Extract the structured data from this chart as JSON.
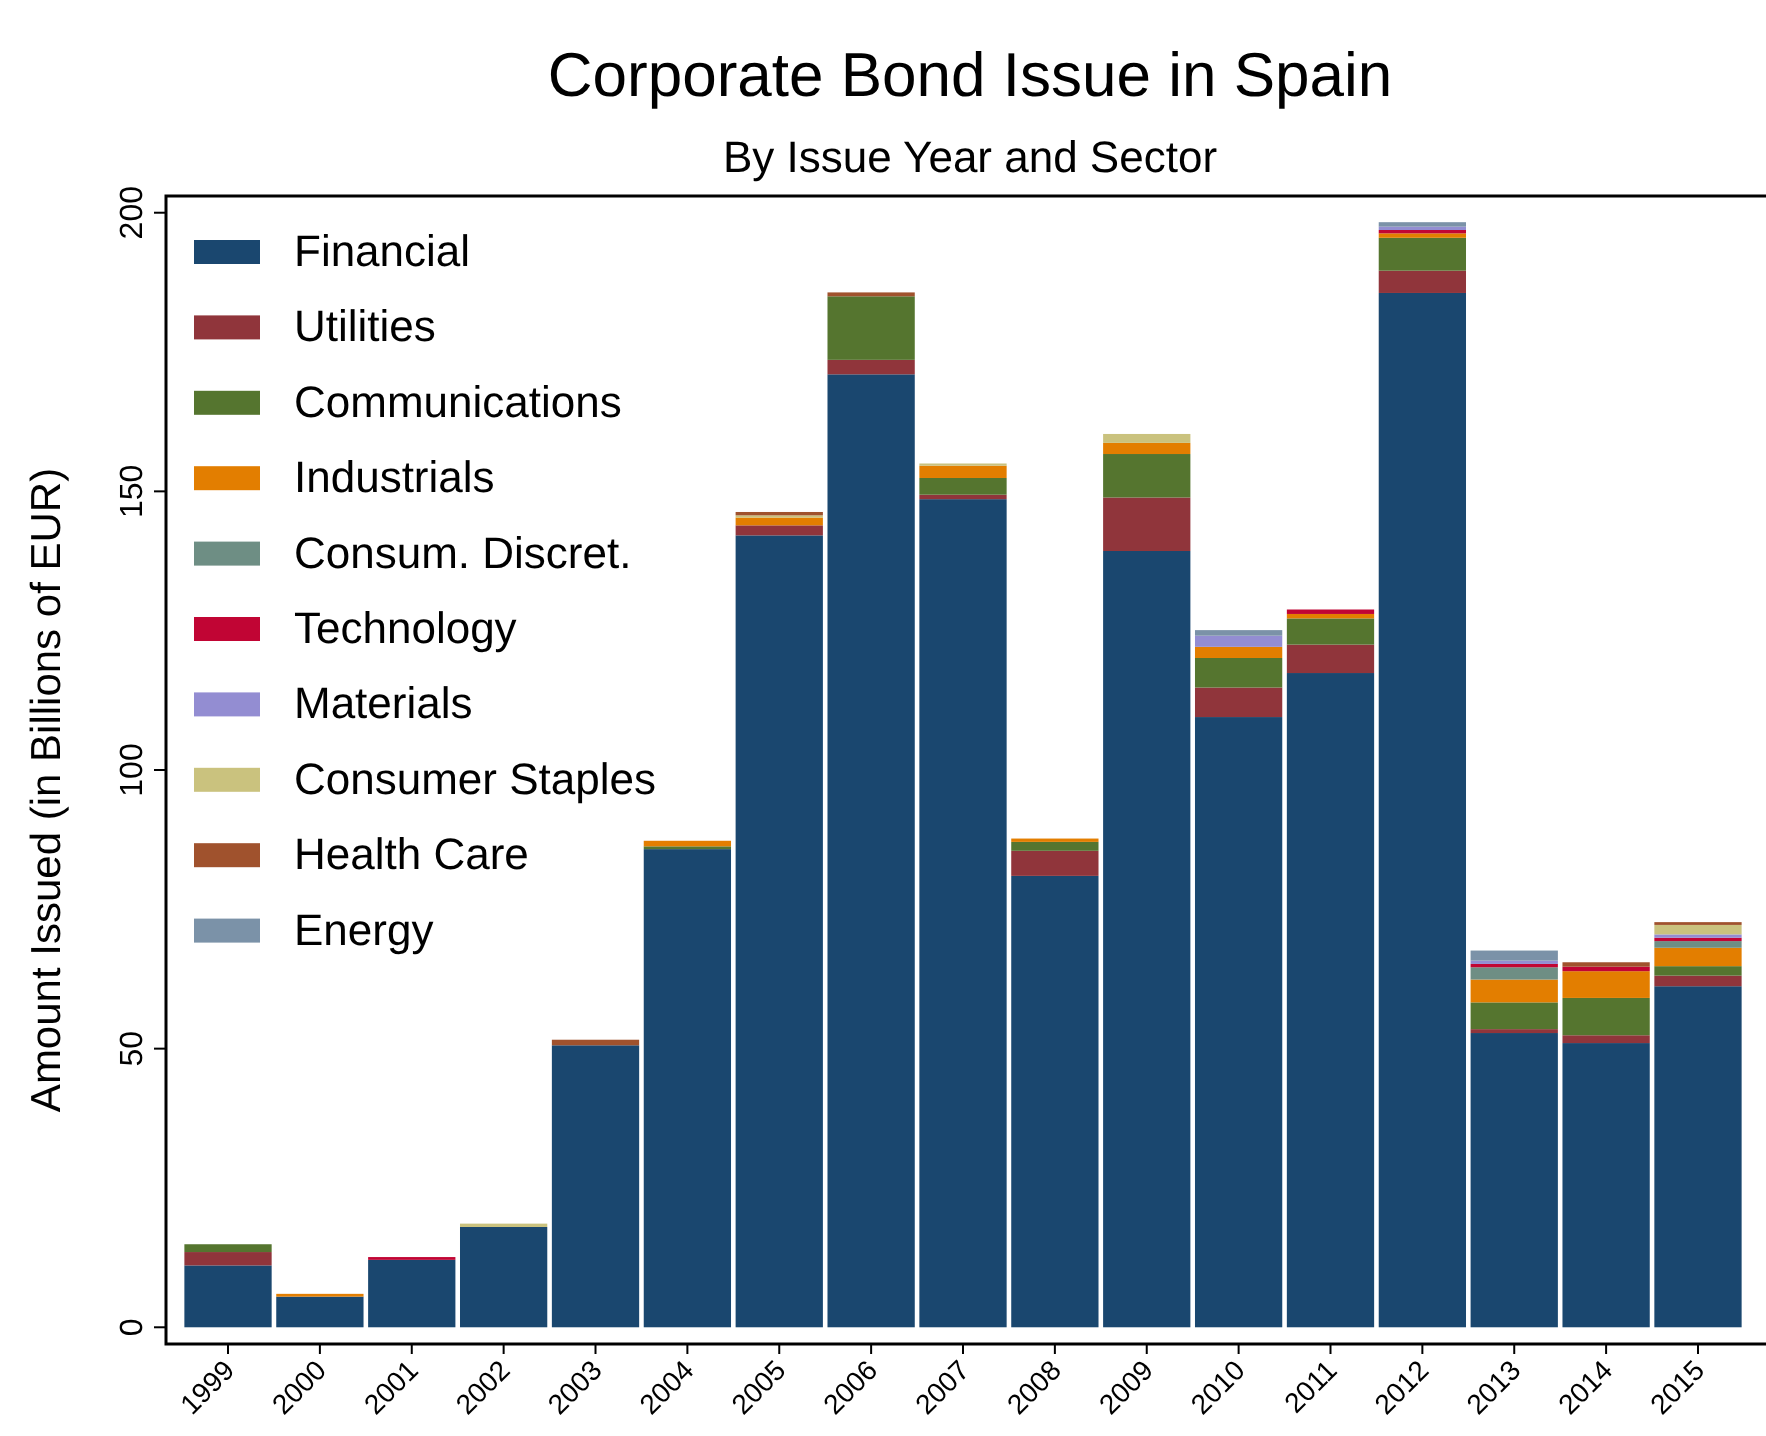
{
  "chart_data": {
    "type": "bar",
    "title": "Corporate Bond Issue in Spain",
    "subtitle": "By Issue Year and Sector",
    "ylabel": "Amount Issued (in Billions of EUR)",
    "categories": [
      "1999",
      "2000",
      "2001",
      "2002",
      "2003",
      "2004",
      "2005",
      "2006",
      "2007",
      "2008",
      "2009",
      "2010",
      "2011",
      "2012",
      "2013",
      "2014",
      "2015"
    ],
    "stacked": true,
    "ylim": [
      -3,
      203
    ],
    "yticks": [
      0,
      50,
      100,
      150,
      200
    ],
    "grid": false,
    "legend": "top left",
    "series": [
      {
        "name": "Financial",
        "color": "#1a476f",
        "values": [
          11.1,
          5.5,
          12.1,
          18.0,
          50.6,
          85.8,
          142.1,
          171.0,
          148.6,
          81.0,
          139.3,
          109.5,
          117.4,
          185.6,
          52.8,
          51.0,
          61.2
        ]
      },
      {
        "name": "Utilities",
        "color": "#90353b",
        "values": [
          2.4,
          null,
          null,
          null,
          null,
          null,
          1.8,
          2.6,
          0.8,
          4.5,
          9.6,
          5.3,
          5.1,
          4.0,
          0.7,
          1.4,
          1.9
        ]
      },
      {
        "name": "Communications",
        "color": "#55752f",
        "values": [
          1.4,
          null,
          null,
          null,
          null,
          0.5,
          null,
          11.4,
          3.0,
          1.6,
          7.8,
          5.3,
          4.7,
          5.9,
          4.8,
          6.7,
          1.7
        ]
      },
      {
        "name": "Industrials",
        "color": "#e37e00",
        "values": [
          null,
          0.5,
          null,
          null,
          null,
          1.0,
          1.4,
          null,
          2.2,
          0.6,
          2.0,
          2.0,
          0.8,
          0.8,
          4.1,
          4.8,
          3.3
        ]
      },
      {
        "name": "Consum. Discret.",
        "color": "#6e8e84",
        "values": [
          null,
          null,
          null,
          null,
          null,
          null,
          null,
          null,
          null,
          null,
          null,
          null,
          null,
          null,
          2.2,
          null,
          1.2
        ]
      },
      {
        "name": "Technology",
        "color": "#c10534",
        "values": [
          null,
          null,
          0.5,
          null,
          null,
          null,
          null,
          null,
          null,
          null,
          null,
          null,
          0.8,
          0.6,
          0.6,
          0.8,
          0.6
        ]
      },
      {
        "name": "Materials",
        "color": "#938dd2",
        "values": [
          null,
          null,
          null,
          null,
          null,
          null,
          null,
          null,
          null,
          null,
          null,
          2.0,
          null,
          0.6,
          0.6,
          null,
          0.6
        ]
      },
      {
        "name": "Consumer Staples",
        "color": "#cac27e",
        "values": [
          null,
          null,
          null,
          0.6,
          null,
          null,
          0.4,
          null,
          0.4,
          null,
          1.6,
          null,
          null,
          null,
          null,
          null,
          1.7
        ]
      },
      {
        "name": "Health Care",
        "color": "#a0522d",
        "values": [
          null,
          null,
          null,
          null,
          1.0,
          null,
          0.6,
          0.7,
          null,
          null,
          null,
          null,
          null,
          null,
          null,
          0.8,
          0.5
        ]
      },
      {
        "name": "Energy",
        "color": "#7b92a8",
        "values": [
          null,
          null,
          null,
          null,
          null,
          null,
          null,
          null,
          null,
          null,
          null,
          1.0,
          null,
          0.8,
          1.8,
          null,
          null
        ]
      }
    ]
  }
}
